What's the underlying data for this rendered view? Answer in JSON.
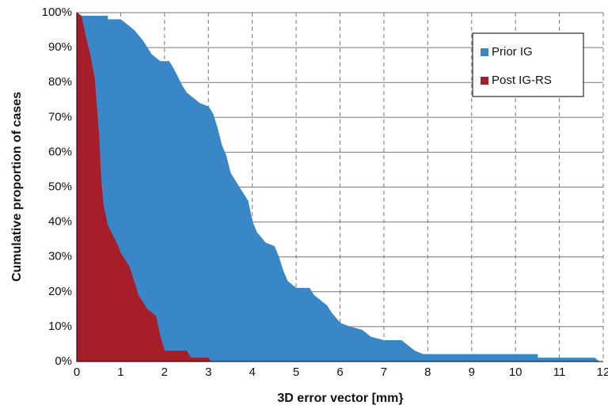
{
  "chart_data": {
    "type": "area",
    "xlabel": "3D error vector [mm}",
    "ylabel": "Cumulative proportion of cases",
    "xlim": [
      0,
      12
    ],
    "xticks": [
      0,
      1,
      2,
      3,
      4,
      5,
      6,
      7,
      8,
      9,
      10,
      11,
      12
    ],
    "ylim": [
      0,
      100
    ],
    "yticks": [
      {
        "value": 0,
        "label": "0%"
      },
      {
        "value": 10,
        "label": "10%"
      },
      {
        "value": 20,
        "label": "20%"
      },
      {
        "value": 30,
        "label": "30%"
      },
      {
        "value": 40,
        "label": "40%"
      },
      {
        "value": 50,
        "label": "50%"
      },
      {
        "value": 60,
        "label": "60%"
      },
      {
        "value": 70,
        "label": "70%"
      },
      {
        "value": 80,
        "label": "80%"
      },
      {
        "value": 90,
        "label": "90%"
      },
      {
        "value": 100,
        "label": "100%"
      }
    ],
    "grid": true,
    "legend": "upper right",
    "series": [
      {
        "name": "Prior IG",
        "color": "#3a87c8",
        "x": [
          0,
          0.1,
          0.7,
          0.7,
          1.0,
          1.1,
          1.3,
          1.5,
          1.7,
          1.9,
          2.1,
          2.2,
          2.4,
          2.5,
          2.7,
          2.8,
          3.0,
          3.1,
          3.2,
          3.3,
          3.4,
          3.5,
          3.7,
          3.9,
          4.0,
          4.1,
          4.3,
          4.5,
          4.6,
          4.7,
          4.8,
          5.0,
          5.3,
          5.4,
          5.5,
          5.6,
          5.7,
          5.8,
          6.0,
          6.2,
          6.5,
          6.7,
          7.0,
          7.4,
          7.6,
          7.7,
          7.9,
          10.5,
          10.5,
          11.8,
          11.9
        ],
        "values": [
          100,
          99,
          99,
          98,
          98,
          97,
          95,
          92,
          88,
          86,
          86,
          84,
          79,
          77,
          75,
          74,
          73,
          71,
          67,
          62,
          59,
          54,
          50,
          46,
          40,
          37,
          34,
          33,
          30,
          26,
          23,
          21,
          21,
          19,
          18,
          17,
          16,
          14,
          11,
          10,
          9,
          7,
          6,
          6,
          4,
          3,
          2,
          2,
          1,
          1,
          0
        ]
      },
      {
        "name": "Post IG-RS",
        "color": "#a51e2a",
        "x": [
          0,
          0.1,
          0.2,
          0.3,
          0.4,
          0.5,
          0.55,
          0.6,
          0.7,
          0.9,
          1.0,
          1.2,
          1.3,
          1.4,
          1.6,
          1.8,
          1.9,
          2.0,
          2.5,
          2.6,
          3.0,
          3.05
        ],
        "values": [
          100,
          99,
          93,
          88,
          81,
          65,
          52,
          45,
          39,
          34,
          31,
          27,
          23,
          19,
          15,
          13,
          7,
          3,
          3,
          1,
          1,
          0
        ]
      }
    ]
  }
}
